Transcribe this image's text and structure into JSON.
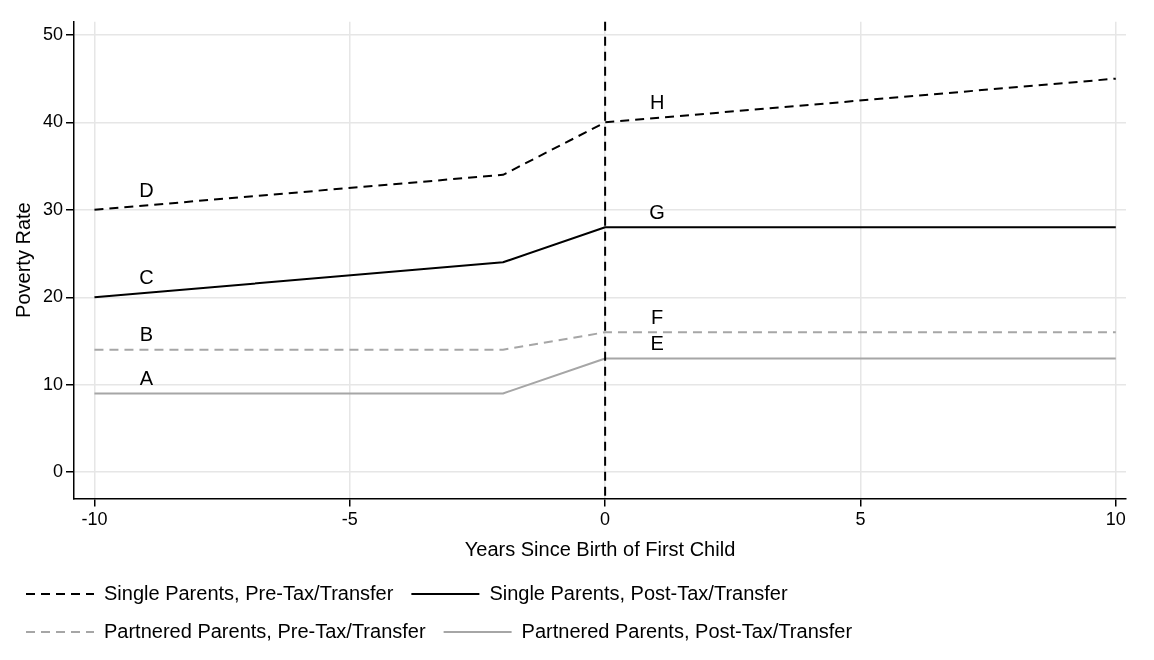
{
  "chart_data": {
    "type": "line",
    "xlabel": "Years Since Birth of First Child",
    "ylabel": "Poverty Rate",
    "xlim": [
      -10.4,
      10.2
    ],
    "xticks": [
      -10,
      -5,
      0,
      5,
      10
    ],
    "ylim": [
      -3,
      51.5
    ],
    "yticks": [
      0,
      10,
      20,
      30,
      40,
      50
    ],
    "grid": true,
    "legend": "bottom",
    "marker": "none",
    "series": [
      {
        "name": "Single Parents, Pre-Tax/Transfer",
        "color": "#000000",
        "line_style": "dashed",
        "x": [
          -10,
          -2,
          0,
          10
        ],
        "values": [
          30,
          34,
          40,
          45
        ]
      },
      {
        "name": "Single Parents, Post-Tax/Transfer",
        "color": "#000000",
        "line_style": "solid",
        "x": [
          -10,
          -2,
          0,
          10
        ],
        "values": [
          20,
          24,
          28,
          28
        ]
      },
      {
        "name": "Partnered Parents, Pre-Tax/Transfer",
        "color": "#a6a6a6",
        "line_style": "dashed",
        "x": [
          -10,
          -2,
          0,
          10
        ],
        "values": [
          14,
          14,
          16,
          16
        ]
      },
      {
        "name": "Partnered Parents, Post-Tax/Transfer",
        "color": "#a6a6a6",
        "line_style": "solid",
        "x": [
          -10,
          -2,
          0,
          10
        ],
        "values": [
          9,
          9,
          13,
          13
        ]
      }
    ],
    "ref_lines": [
      {
        "axis": "x",
        "value": 0,
        "color": "#000000",
        "line_style": "dashed"
      }
    ],
    "annotations": [
      "A",
      "B",
      "C",
      "D",
      "E",
      "F",
      "G",
      "H"
    ]
  }
}
